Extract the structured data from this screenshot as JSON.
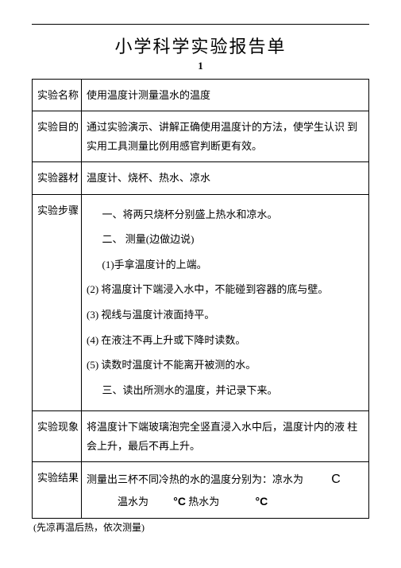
{
  "title": "小学科学实验报告单",
  "subtitle": "1",
  "rows": {
    "name_label": "实验名称",
    "name_value": "使用温度计测量温水的温度",
    "purpose_label": "实验目的",
    "purpose_value": "通过实验演示、讲解正确使用温度计的方法，使学生认识  到实用工具测量比例用感官判断更有效。",
    "equipment_label": "实验器材",
    "equipment_value": "温度计、烧杯、热水、凉水",
    "steps_label": "实验步骤",
    "steps": {
      "s1": "一、将两只烧杯分别盛上热水和凉水。",
      "s2": "二、 测量(边做边说)",
      "s2_1": "(1)手拿温度计的上端。",
      "s2_2": "(2)    将温度计下端浸入水中，不能碰到容器的底与壁。",
      "s2_3": "(3)    视线与温度计液面持平。",
      "s2_4": "(4)    在液注不再上升或下降时读数。",
      "s2_5": "(5)   读数时温度计不能离开被测的水。",
      "s3": "三、读出所测水的温度，并记录下来。"
    },
    "phenomenon_label": "实验现象",
    "phenomenon_value": "将温度计下端玻璃泡完全竖直浸入水中后，温度计内的液  柱会上升，最后不再上升。",
    "result_label": "实验结果",
    "result_line1_pre": "测量出三杯不同冷热的水的温度分别为：凉水为",
    "result_line1_unit": "C",
    "result_line2_a": "温水为",
    "result_line2_unit1": "°C",
    "result_line2_b": " 热水为",
    "result_line2_unit2": "°C"
  },
  "footnote": "(先凉再温后热，依次测量)"
}
